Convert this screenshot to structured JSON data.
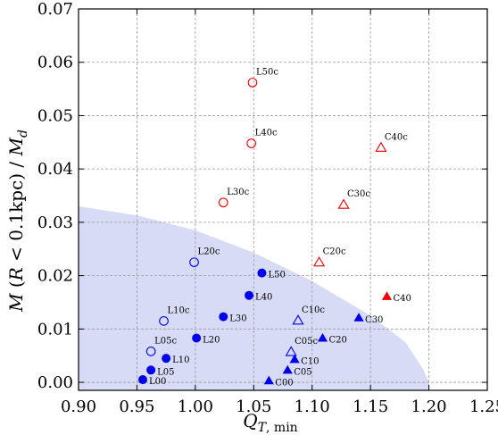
{
  "chart_data": {
    "type": "scatter",
    "xlabel": "Q_{T,min}",
    "ylabel": "M (R < 0.1kpc) / M_d",
    "xlim": [
      0.9,
      1.25
    ],
    "ylim": [
      -0.0015,
      0.07
    ],
    "xticks": [
      0.9,
      0.95,
      1.0,
      1.05,
      1.1,
      1.15,
      1.2,
      1.25
    ],
    "xtick_labels": [
      "0.90",
      "0.95",
      "1.00",
      "1.05",
      "1.10",
      "1.15",
      "1.20",
      "1.25"
    ],
    "yticks": [
      0.0,
      0.01,
      0.02,
      0.03,
      0.04,
      0.05,
      0.06,
      0.07
    ],
    "ytick_labels": [
      "0.00",
      "0.01",
      "0.02",
      "0.03",
      "0.04",
      "0.05",
      "0.06",
      "0.07"
    ],
    "grid": true,
    "shaded_region": {
      "color": "#d8dbf5",
      "boundary": [
        [
          0.9,
          0.033
        ],
        [
          0.95,
          0.0313
        ],
        [
          1.0,
          0.0285
        ],
        [
          1.05,
          0.0243
        ],
        [
          1.1,
          0.019
        ],
        [
          1.15,
          0.0125
        ],
        [
          1.18,
          0.0075
        ],
        [
          1.195,
          0.0025
        ],
        [
          1.2,
          0.0
        ]
      ]
    },
    "colors": {
      "blue": "#0000ee",
      "red": "#ee0000"
    },
    "points": [
      {
        "label": "L00",
        "x": 0.955,
        "y": 0.0005,
        "marker": "circle",
        "filled": true,
        "color": "blue"
      },
      {
        "label": "L05",
        "x": 0.962,
        "y": 0.0023,
        "marker": "circle",
        "filled": true,
        "color": "blue"
      },
      {
        "label": "L10",
        "x": 0.975,
        "y": 0.0045,
        "marker": "circle",
        "filled": true,
        "color": "blue"
      },
      {
        "label": "L20",
        "x": 1.001,
        "y": 0.0083,
        "marker": "circle",
        "filled": true,
        "color": "blue"
      },
      {
        "label": "L30",
        "x": 1.024,
        "y": 0.0123,
        "marker": "circle",
        "filled": true,
        "color": "blue"
      },
      {
        "label": "L40",
        "x": 1.046,
        "y": 0.0163,
        "marker": "circle",
        "filled": true,
        "color": "blue"
      },
      {
        "label": "L50",
        "x": 1.057,
        "y": 0.0205,
        "marker": "circle",
        "filled": true,
        "color": "blue"
      },
      {
        "label": "L05c",
        "x": 0.962,
        "y": 0.0058,
        "marker": "circle",
        "filled": false,
        "color": "blue"
      },
      {
        "label": "L10c",
        "x": 0.973,
        "y": 0.0115,
        "marker": "circle",
        "filled": false,
        "color": "blue"
      },
      {
        "label": "L20c",
        "x": 0.999,
        "y": 0.0225,
        "marker": "circle",
        "filled": false,
        "color": "blue"
      },
      {
        "label": "L30c",
        "x": 1.024,
        "y": 0.0337,
        "marker": "circle",
        "filled": false,
        "color": "red"
      },
      {
        "label": "L40c",
        "x": 1.048,
        "y": 0.0448,
        "marker": "circle",
        "filled": false,
        "color": "red"
      },
      {
        "label": "L50c",
        "x": 1.049,
        "y": 0.0562,
        "marker": "circle",
        "filled": false,
        "color": "red"
      },
      {
        "label": "C00",
        "x": 1.063,
        "y": 0.0003,
        "marker": "triangle",
        "filled": true,
        "color": "blue"
      },
      {
        "label": "C05",
        "x": 1.079,
        "y": 0.0023,
        "marker": "triangle",
        "filled": true,
        "color": "blue"
      },
      {
        "label": "C10",
        "x": 1.085,
        "y": 0.0043,
        "marker": "triangle",
        "filled": true,
        "color": "blue"
      },
      {
        "label": "C20",
        "x": 1.109,
        "y": 0.0083,
        "marker": "triangle",
        "filled": true,
        "color": "blue"
      },
      {
        "label": "C30",
        "x": 1.14,
        "y": 0.0121,
        "marker": "triangle",
        "filled": true,
        "color": "blue"
      },
      {
        "label": "C40",
        "x": 1.164,
        "y": 0.0161,
        "marker": "triangle",
        "filled": true,
        "color": "red"
      },
      {
        "label": "C05c",
        "x": 1.082,
        "y": 0.0057,
        "marker": "triangle",
        "filled": false,
        "color": "blue"
      },
      {
        "label": "C10c",
        "x": 1.088,
        "y": 0.0116,
        "marker": "triangle",
        "filled": false,
        "color": "blue"
      },
      {
        "label": "C20c",
        "x": 1.106,
        "y": 0.0225,
        "marker": "triangle",
        "filled": false,
        "color": "red"
      },
      {
        "label": "C30c",
        "x": 1.127,
        "y": 0.0333,
        "marker": "triangle",
        "filled": false,
        "color": "red"
      },
      {
        "label": "C40c",
        "x": 1.159,
        "y": 0.044,
        "marker": "triangle",
        "filled": false,
        "color": "red"
      }
    ]
  }
}
